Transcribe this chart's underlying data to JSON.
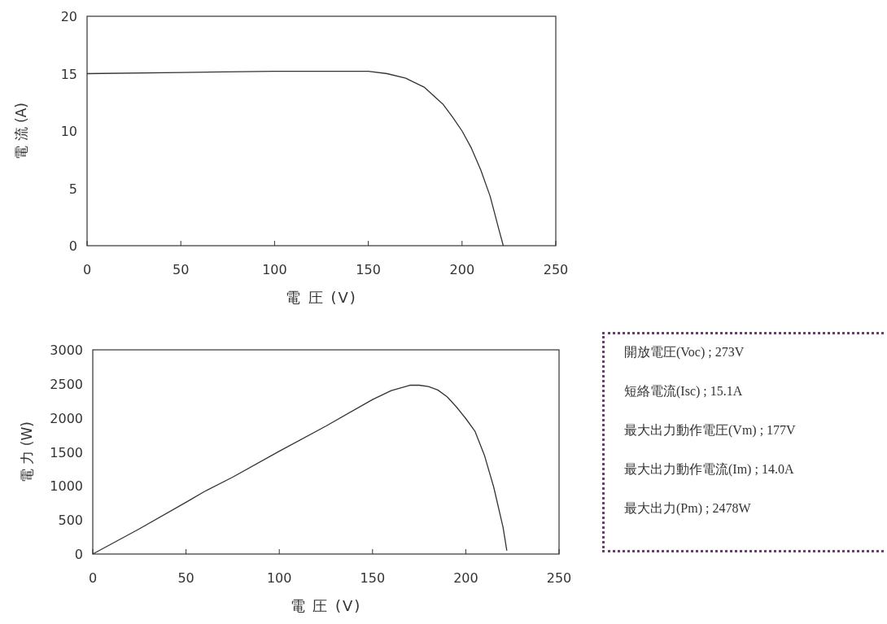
{
  "chart_data": [
    {
      "type": "line",
      "xlabel": "電 圧 (V)",
      "ylabel": "電 流 (A)",
      "xlim": [
        0,
        250
      ],
      "ylim": [
        0,
        20
      ],
      "xticks": [
        0,
        50,
        100,
        150,
        200,
        250
      ],
      "yticks": [
        0,
        5,
        10,
        15,
        20
      ],
      "grid": false,
      "marker": "none",
      "line_style": "solid",
      "series": [
        {
          "color": "#333333",
          "x": [
            0,
            50,
            100,
            150,
            160,
            170,
            180,
            190,
            195,
            200,
            205,
            210,
            215,
            220,
            222
          ],
          "values": [
            15.0,
            15.1,
            15.2,
            15.2,
            15.0,
            14.6,
            13.8,
            12.3,
            11.2,
            10.0,
            8.5,
            6.6,
            4.3,
            1.2,
            0
          ]
        }
      ]
    },
    {
      "type": "line",
      "xlabel": "電 圧 (V)",
      "ylabel": "電 力 (W)",
      "xlim": [
        0,
        250
      ],
      "ylim": [
        0,
        3000
      ],
      "xticks": [
        0,
        50,
        100,
        150,
        200,
        250
      ],
      "yticks": [
        0,
        500,
        1000,
        1500,
        2000,
        2500,
        3000
      ],
      "grid": false,
      "marker": "none",
      "line_style": "solid",
      "series": [
        {
          "color": "#333333",
          "x": [
            0,
            25,
            50,
            60,
            75,
            100,
            125,
            150,
            160,
            170,
            175,
            180,
            185,
            190,
            195,
            200,
            205,
            210,
            215,
            220,
            222
          ],
          "values": [
            0,
            370,
            760,
            920,
            1130,
            1510,
            1880,
            2270,
            2400,
            2480,
            2480,
            2460,
            2410,
            2310,
            2160,
            1990,
            1800,
            1450,
            980,
            390,
            50
          ]
        }
      ]
    },
    {
      "type": "other",
      "annotations": [
        "開放電圧(Voc) ; 273V",
        "短絡電流(Isc) ; 15.1A",
        "最大出力動作電圧(Vm) ; 177V",
        "最大出力動作電流(Im) ; 14.0A",
        "最大出力(Pm) ; 2478W"
      ]
    }
  ]
}
